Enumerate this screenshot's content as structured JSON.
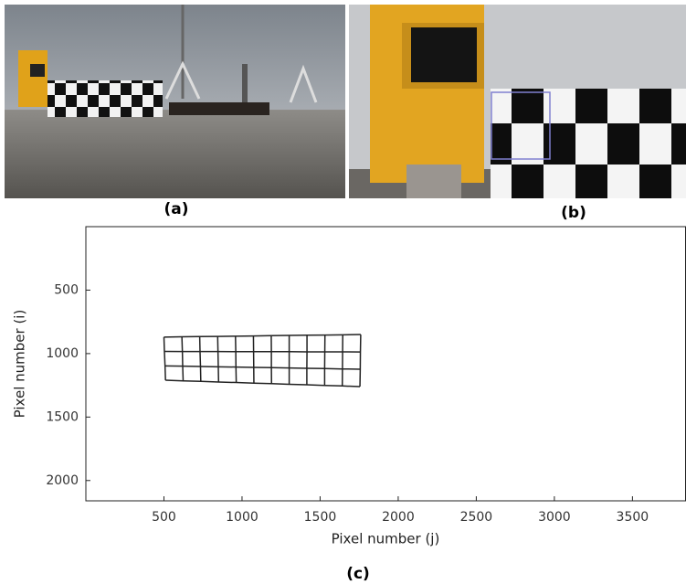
{
  "captions": {
    "a": "(a)",
    "b": "(b)",
    "c": "(c)"
  },
  "chart_data": {
    "type": "mesh",
    "xlabel": "Pixel number (j)",
    "ylabel": "Pixel number (i)",
    "xlim": [
      0,
      3840
    ],
    "ylim": [
      0,
      2160
    ],
    "y_reversed": true,
    "xticks": [
      500,
      1000,
      1500,
      2000,
      2500,
      3000,
      3500
    ],
    "yticks": [
      500,
      1000,
      1500,
      2000
    ],
    "color": "#222222",
    "x": [
      [
        500,
        615,
        729,
        844,
        958,
        1073,
        1187,
        1302,
        1416,
        1531,
        1645,
        1760
      ],
      [
        503,
        618,
        731,
        846,
        960,
        1074,
        1188,
        1302,
        1416,
        1530,
        1644,
        1758
      ],
      [
        507,
        620,
        734,
        848,
        961,
        1075,
        1188,
        1302,
        1415,
        1529,
        1643,
        1757
      ],
      [
        510,
        623,
        736,
        850,
        963,
        1076,
        1189,
        1302,
        1415,
        1529,
        1642,
        1755
      ]
    ],
    "y": [
      [
        870,
        868,
        866,
        865,
        863,
        861,
        859,
        857,
        855,
        854,
        852,
        850
      ],
      [
        983,
        984,
        984,
        984,
        985,
        985,
        985,
        985,
        986,
        986,
        986,
        987
      ],
      [
        1097,
        1099,
        1102,
        1104,
        1106,
        1109,
        1111,
        1113,
        1116,
        1118,
        1121,
        1123
      ],
      [
        1210,
        1215,
        1219,
        1224,
        1228,
        1233,
        1237,
        1242,
        1246,
        1251,
        1255,
        1260
      ]
    ]
  }
}
